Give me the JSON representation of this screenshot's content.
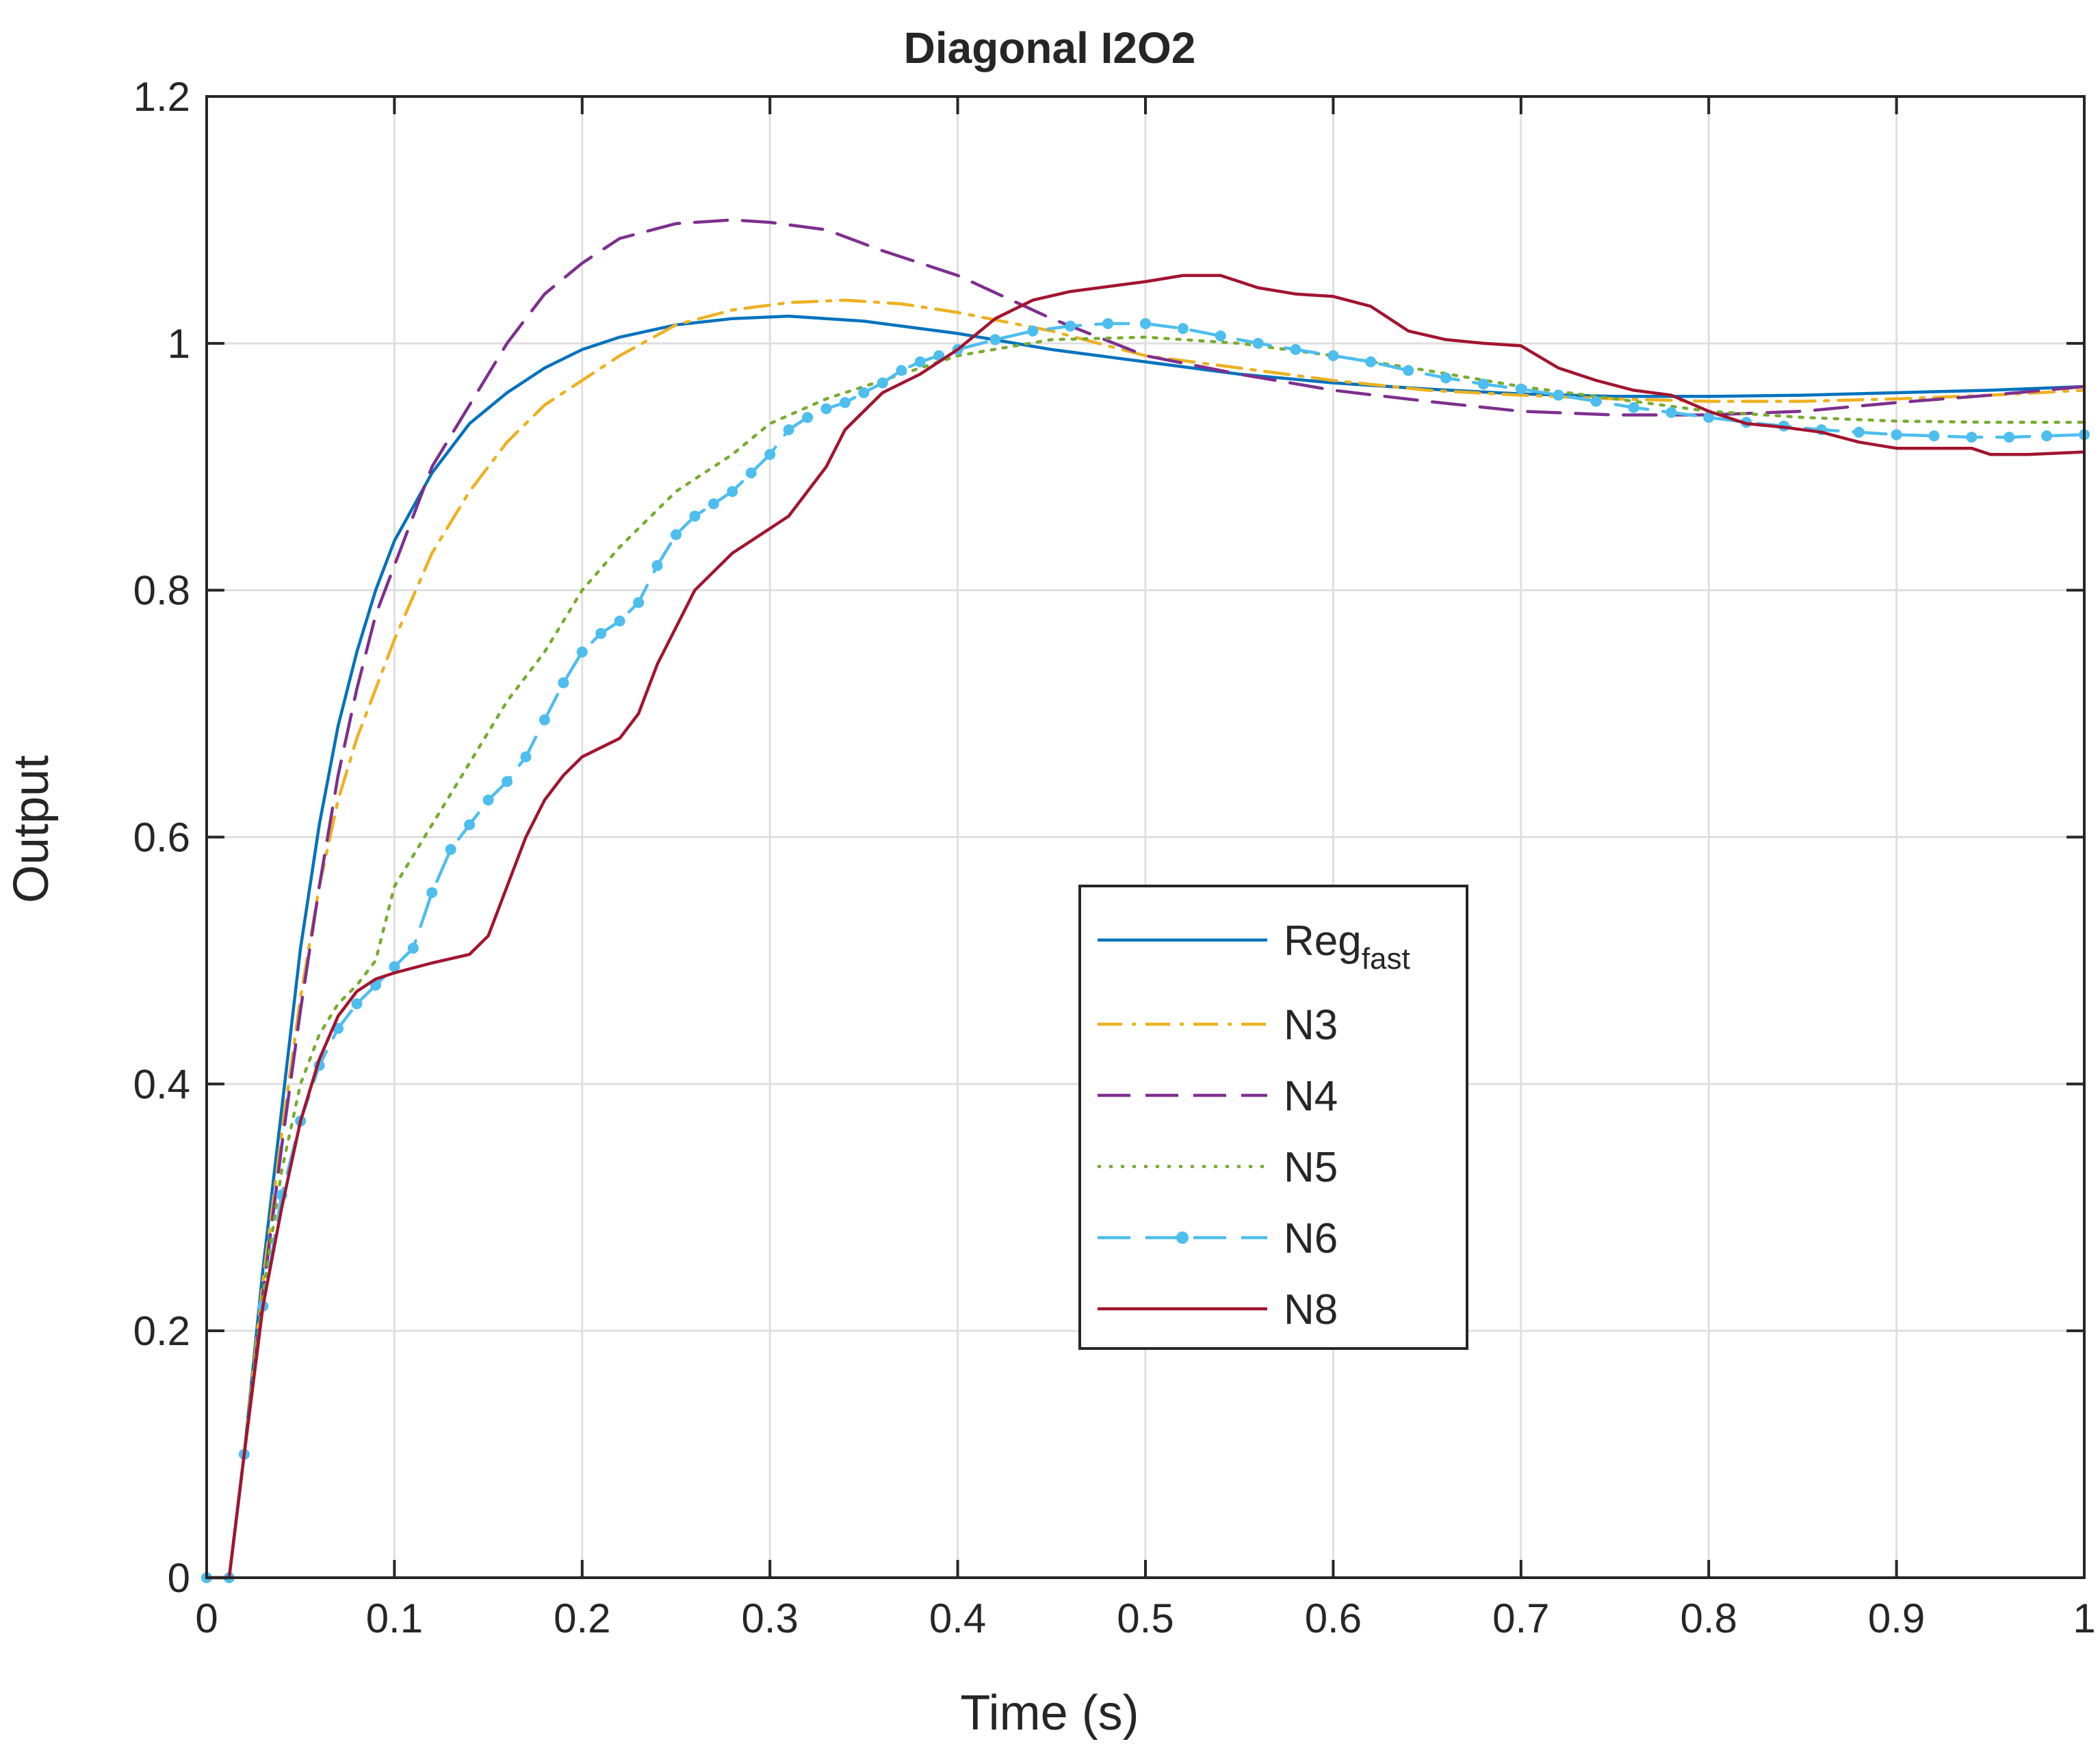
{
  "chart_data": {
    "type": "line",
    "title": "Diagonal I2O2",
    "xlabel": "Time (s)",
    "ylabel": "Output",
    "xlim": [
      0,
      1
    ],
    "ylim": [
      0,
      1.2
    ],
    "xticks": [
      0,
      0.1,
      0.2,
      0.3,
      0.4,
      0.5,
      0.6,
      0.7,
      0.8,
      0.9,
      1
    ],
    "xtick_labels": [
      "0",
      "0.1",
      "0.2",
      "0.3",
      "0.4",
      "0.5",
      "0.6",
      "0.7",
      "0.8",
      "0.9",
      "1"
    ],
    "yticks": [
      0,
      0.2,
      0.4,
      0.6,
      0.8,
      1,
      1.2
    ],
    "ytick_labels": [
      "0",
      "0.2",
      "0.4",
      "0.6",
      "0.8",
      "1",
      "1.2"
    ],
    "grid": true,
    "legend_position": "center-right",
    "series": [
      {
        "name": "Reg",
        "name_subscript": "fast",
        "color": "#0072BD",
        "style": "solid",
        "points": [
          [
            0,
            0
          ],
          [
            0.012,
            0
          ],
          [
            0.02,
            0.1
          ],
          [
            0.03,
            0.25
          ],
          [
            0.04,
            0.38
          ],
          [
            0.05,
            0.51
          ],
          [
            0.06,
            0.61
          ],
          [
            0.07,
            0.69
          ],
          [
            0.08,
            0.75
          ],
          [
            0.09,
            0.8
          ],
          [
            0.1,
            0.84
          ],
          [
            0.12,
            0.895
          ],
          [
            0.14,
            0.935
          ],
          [
            0.16,
            0.96
          ],
          [
            0.18,
            0.98
          ],
          [
            0.2,
            0.995
          ],
          [
            0.22,
            1.005
          ],
          [
            0.25,
            1.015
          ],
          [
            0.28,
            1.02
          ],
          [
            0.31,
            1.022
          ],
          [
            0.35,
            1.018
          ],
          [
            0.4,
            1.008
          ],
          [
            0.45,
            0.995
          ],
          [
            0.5,
            0.985
          ],
          [
            0.55,
            0.975
          ],
          [
            0.6,
            0.968
          ],
          [
            0.65,
            0.963
          ],
          [
            0.7,
            0.959
          ],
          [
            0.75,
            0.957
          ],
          [
            0.8,
            0.957
          ],
          [
            0.85,
            0.958
          ],
          [
            0.9,
            0.96
          ],
          [
            0.95,
            0.962
          ],
          [
            1,
            0.965
          ]
        ]
      },
      {
        "name": "N3",
        "color": "#EDB120",
        "style": "dashdot",
        "points": [
          [
            0,
            0
          ],
          [
            0.012,
            0
          ],
          [
            0.02,
            0.1
          ],
          [
            0.03,
            0.24
          ],
          [
            0.04,
            0.36
          ],
          [
            0.05,
            0.47
          ],
          [
            0.06,
            0.56
          ],
          [
            0.07,
            0.63
          ],
          [
            0.08,
            0.68
          ],
          [
            0.09,
            0.72
          ],
          [
            0.1,
            0.76
          ],
          [
            0.12,
            0.83
          ],
          [
            0.14,
            0.88
          ],
          [
            0.16,
            0.92
          ],
          [
            0.18,
            0.95
          ],
          [
            0.2,
            0.97
          ],
          [
            0.22,
            0.99
          ],
          [
            0.25,
            1.015
          ],
          [
            0.28,
            1.027
          ],
          [
            0.31,
            1.033
          ],
          [
            0.34,
            1.035
          ],
          [
            0.37,
            1.032
          ],
          [
            0.4,
            1.025
          ],
          [
            0.45,
            1.01
          ],
          [
            0.5,
            0.99
          ],
          [
            0.55,
            0.98
          ],
          [
            0.6,
            0.97
          ],
          [
            0.65,
            0.962
          ],
          [
            0.7,
            0.958
          ],
          [
            0.75,
            0.955
          ],
          [
            0.8,
            0.953
          ],
          [
            0.85,
            0.953
          ],
          [
            0.9,
            0.955
          ],
          [
            0.95,
            0.958
          ],
          [
            1,
            0.962
          ]
        ]
      },
      {
        "name": "N4",
        "color": "#7E2F8E",
        "style": "dashed",
        "points": [
          [
            0,
            0
          ],
          [
            0.012,
            0
          ],
          [
            0.02,
            0.1
          ],
          [
            0.03,
            0.23
          ],
          [
            0.04,
            0.35
          ],
          [
            0.05,
            0.46
          ],
          [
            0.06,
            0.56
          ],
          [
            0.07,
            0.65
          ],
          [
            0.08,
            0.72
          ],
          [
            0.09,
            0.78
          ],
          [
            0.1,
            0.82
          ],
          [
            0.12,
            0.9
          ],
          [
            0.14,
            0.95
          ],
          [
            0.16,
            1
          ],
          [
            0.18,
            1.04
          ],
          [
            0.2,
            1.065
          ],
          [
            0.22,
            1.085
          ],
          [
            0.25,
            1.097
          ],
          [
            0.28,
            1.1
          ],
          [
            0.3,
            1.098
          ],
          [
            0.33,
            1.092
          ],
          [
            0.36,
            1.075
          ],
          [
            0.4,
            1.055
          ],
          [
            0.45,
            1.02
          ],
          [
            0.5,
            0.99
          ],
          [
            0.55,
            0.975
          ],
          [
            0.6,
            0.962
          ],
          [
            0.65,
            0.953
          ],
          [
            0.7,
            0.945
          ],
          [
            0.75,
            0.942
          ],
          [
            0.8,
            0.942
          ],
          [
            0.85,
            0.945
          ],
          [
            0.9,
            0.952
          ],
          [
            0.95,
            0.958
          ],
          [
            1,
            0.965
          ]
        ]
      },
      {
        "name": "N5",
        "color": "#77AC30",
        "style": "dotted",
        "points": [
          [
            0,
            0
          ],
          [
            0.012,
            0
          ],
          [
            0.02,
            0.1
          ],
          [
            0.03,
            0.23
          ],
          [
            0.04,
            0.33
          ],
          [
            0.05,
            0.4
          ],
          [
            0.06,
            0.44
          ],
          [
            0.07,
            0.465
          ],
          [
            0.08,
            0.48
          ],
          [
            0.09,
            0.5
          ],
          [
            0.1,
            0.56
          ],
          [
            0.12,
            0.61
          ],
          [
            0.14,
            0.66
          ],
          [
            0.16,
            0.71
          ],
          [
            0.18,
            0.75
          ],
          [
            0.2,
            0.8
          ],
          [
            0.22,
            0.835
          ],
          [
            0.25,
            0.88
          ],
          [
            0.28,
            0.91
          ],
          [
            0.3,
            0.935
          ],
          [
            0.33,
            0.955
          ],
          [
            0.36,
            0.97
          ],
          [
            0.4,
            0.99
          ],
          [
            0.45,
            1.003
          ],
          [
            0.5,
            1.005
          ],
          [
            0.55,
            1.0
          ],
          [
            0.6,
            0.99
          ],
          [
            0.65,
            0.978
          ],
          [
            0.7,
            0.965
          ],
          [
            0.75,
            0.955
          ],
          [
            0.8,
            0.945
          ],
          [
            0.85,
            0.94
          ],
          [
            0.9,
            0.937
          ],
          [
            0.95,
            0.936
          ],
          [
            1,
            0.936
          ]
        ]
      },
      {
        "name": "N6",
        "color": "#4DBEEE",
        "style": "dashed-markers",
        "points": [
          [
            0,
            0
          ],
          [
            0.012,
            0
          ],
          [
            0.02,
            0.1
          ],
          [
            0.03,
            0.22
          ],
          [
            0.04,
            0.31
          ],
          [
            0.05,
            0.37
          ],
          [
            0.06,
            0.415
          ],
          [
            0.07,
            0.445
          ],
          [
            0.08,
            0.465
          ],
          [
            0.09,
            0.48
          ],
          [
            0.1,
            0.495
          ],
          [
            0.11,
            0.51
          ],
          [
            0.12,
            0.555
          ],
          [
            0.13,
            0.59
          ],
          [
            0.14,
            0.61
          ],
          [
            0.15,
            0.63
          ],
          [
            0.16,
            0.645
          ],
          [
            0.17,
            0.665
          ],
          [
            0.18,
            0.695
          ],
          [
            0.19,
            0.725
          ],
          [
            0.2,
            0.75
          ],
          [
            0.21,
            0.765
          ],
          [
            0.22,
            0.775
          ],
          [
            0.23,
            0.79
          ],
          [
            0.24,
            0.82
          ],
          [
            0.25,
            0.845
          ],
          [
            0.26,
            0.86
          ],
          [
            0.27,
            0.87
          ],
          [
            0.28,
            0.88
          ],
          [
            0.29,
            0.895
          ],
          [
            0.3,
            0.91
          ],
          [
            0.31,
            0.93
          ],
          [
            0.32,
            0.94
          ],
          [
            0.33,
            0.947
          ],
          [
            0.34,
            0.952
          ],
          [
            0.35,
            0.96
          ],
          [
            0.36,
            0.968
          ],
          [
            0.37,
            0.978
          ],
          [
            0.38,
            0.985
          ],
          [
            0.39,
            0.99
          ],
          [
            0.4,
            0.995
          ],
          [
            0.42,
            1.003
          ],
          [
            0.44,
            1.01
          ],
          [
            0.46,
            1.014
          ],
          [
            0.48,
            1.016
          ],
          [
            0.5,
            1.016
          ],
          [
            0.52,
            1.012
          ],
          [
            0.54,
            1.006
          ],
          [
            0.56,
            1.0
          ],
          [
            0.58,
            0.995
          ],
          [
            0.6,
            0.99
          ],
          [
            0.62,
            0.985
          ],
          [
            0.64,
            0.978
          ],
          [
            0.66,
            0.972
          ],
          [
            0.68,
            0.967
          ],
          [
            0.7,
            0.963
          ],
          [
            0.72,
            0.958
          ],
          [
            0.74,
            0.953
          ],
          [
            0.76,
            0.948
          ],
          [
            0.78,
            0.944
          ],
          [
            0.8,
            0.94
          ],
          [
            0.82,
            0.936
          ],
          [
            0.84,
            0.933
          ],
          [
            0.86,
            0.93
          ],
          [
            0.88,
            0.928
          ],
          [
            0.9,
            0.926
          ],
          [
            0.92,
            0.925
          ],
          [
            0.94,
            0.924
          ],
          [
            0.96,
            0.924
          ],
          [
            0.98,
            0.925
          ],
          [
            1,
            0.926
          ]
        ]
      },
      {
        "name": "N8",
        "color": "#A2142F",
        "style": "solid",
        "points": [
          [
            0,
            0
          ],
          [
            0.012,
            0
          ],
          [
            0.02,
            0.1
          ],
          [
            0.03,
            0.22
          ],
          [
            0.04,
            0.3
          ],
          [
            0.05,
            0.37
          ],
          [
            0.06,
            0.42
          ],
          [
            0.07,
            0.455
          ],
          [
            0.08,
            0.475
          ],
          [
            0.09,
            0.485
          ],
          [
            0.1,
            0.49
          ],
          [
            0.12,
            0.498
          ],
          [
            0.14,
            0.505
          ],
          [
            0.15,
            0.52
          ],
          [
            0.16,
            0.56
          ],
          [
            0.17,
            0.6
          ],
          [
            0.18,
            0.63
          ],
          [
            0.19,
            0.65
          ],
          [
            0.2,
            0.665
          ],
          [
            0.22,
            0.68
          ],
          [
            0.23,
            0.7
          ],
          [
            0.24,
            0.74
          ],
          [
            0.26,
            0.8
          ],
          [
            0.28,
            0.83
          ],
          [
            0.3,
            0.85
          ],
          [
            0.31,
            0.86
          ],
          [
            0.32,
            0.88
          ],
          [
            0.33,
            0.9
          ],
          [
            0.34,
            0.93
          ],
          [
            0.36,
            0.96
          ],
          [
            0.38,
            0.975
          ],
          [
            0.4,
            0.995
          ],
          [
            0.42,
            1.02
          ],
          [
            0.44,
            1.035
          ],
          [
            0.46,
            1.042
          ],
          [
            0.5,
            1.05
          ],
          [
            0.52,
            1.055
          ],
          [
            0.54,
            1.055
          ],
          [
            0.56,
            1.045
          ],
          [
            0.58,
            1.04
          ],
          [
            0.6,
            1.038
          ],
          [
            0.62,
            1.03
          ],
          [
            0.64,
            1.01
          ],
          [
            0.66,
            1.003
          ],
          [
            0.68,
            1.0
          ],
          [
            0.7,
            0.998
          ],
          [
            0.72,
            0.98
          ],
          [
            0.74,
            0.97
          ],
          [
            0.76,
            0.962
          ],
          [
            0.78,
            0.958
          ],
          [
            0.8,
            0.945
          ],
          [
            0.82,
            0.935
          ],
          [
            0.84,
            0.932
          ],
          [
            0.86,
            0.928
          ],
          [
            0.88,
            0.92
          ],
          [
            0.9,
            0.915
          ],
          [
            0.92,
            0.915
          ],
          [
            0.94,
            0.915
          ],
          [
            0.95,
            0.91
          ],
          [
            0.97,
            0.91
          ],
          [
            1,
            0.912
          ]
        ]
      }
    ]
  }
}
